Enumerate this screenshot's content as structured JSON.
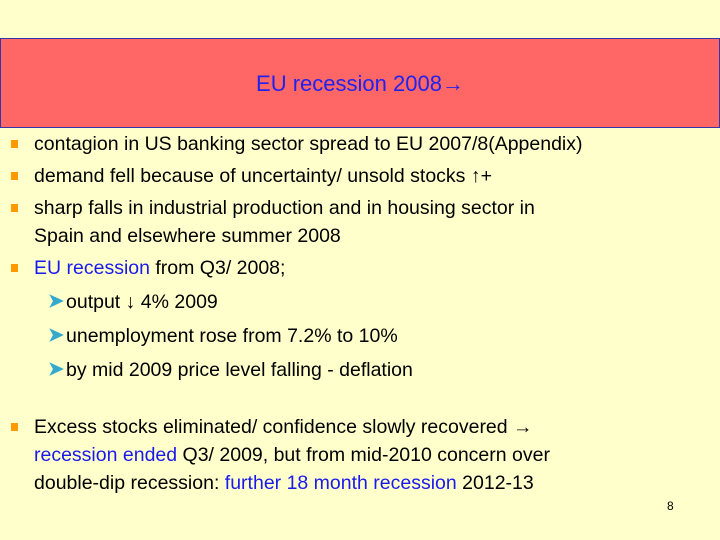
{
  "slide": {
    "title": "EU recession 2008→",
    "page_number": "8"
  },
  "bullets": {
    "b1": "contagion in US banking sector spread to EU 2007/8(Appendix)",
    "b2": "demand fell because of uncertainty/ unsold stocks ↑+",
    "b3_line1": "sharp falls in industrial production and in housing sector in",
    "b3_line2": "Spain and elsewhere summer 2008",
    "b4_highlight": "EU recession",
    "b4_rest": " from Q3/ 2008;",
    "sub1": "output ↓ 4% 2009",
    "sub2": "unemployment rose from 7.2% to 10%",
    "sub3": "by mid 2009 price level falling - deflation",
    "b5_part1": "Excess stocks eliminated/ confidence slowly recovered →",
    "b5_highlight1": "recession ended",
    "b5_part2": " Q3/ 2009, but from mid-2010 concern over",
    "b5_part3": "double-dip recession: ",
    "b5_highlight2": "further 18 month recession",
    "b5_part4": " 2012-13"
  },
  "icons": {
    "bullet": "orange-square-bullet-icon",
    "sub_bullet": "chevron-right-icon"
  },
  "colors": {
    "background": "#ffffcc",
    "title_bar": "#ff6666",
    "title_text": "#2222ee",
    "highlight_text": "#1a1aee",
    "bullet": "#ff9900",
    "sub_bullet": "#33aacc"
  }
}
